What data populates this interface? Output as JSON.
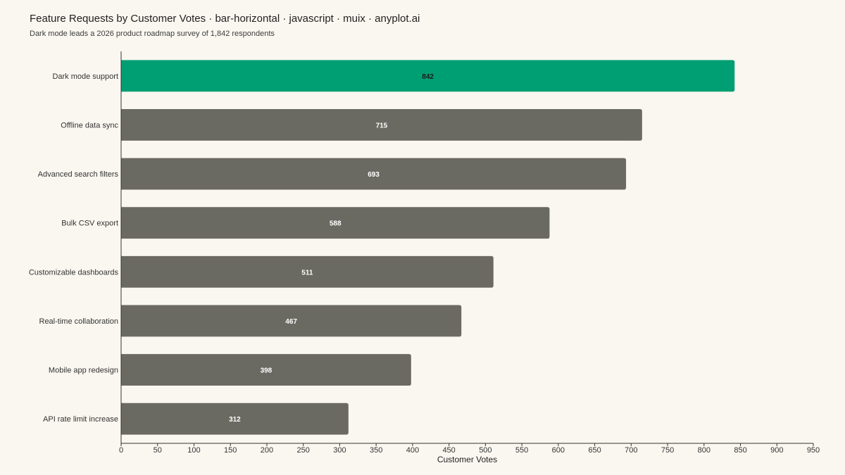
{
  "header": {
    "title": "Feature Requests by Customer Votes · bar-horizontal · javascript · muix · anyplot.ai",
    "subtitle": "Dark mode leads a 2026 product roadmap survey of 1,842 respondents"
  },
  "chart_data": {
    "type": "bar",
    "orientation": "horizontal",
    "categories": [
      "Dark mode support",
      "Offline data sync",
      "Advanced search filters",
      "Bulk CSV export",
      "Customizable dashboards",
      "Real-time collaboration",
      "Mobile app redesign",
      "API rate limit increase"
    ],
    "series": [
      {
        "values": [
          842,
          715,
          693,
          588,
          511,
          467,
          398,
          312
        ]
      }
    ],
    "xlabel": "Customer Votes",
    "ylabel": "",
    "xlim": [
      0,
      950
    ],
    "xticks": [
      0,
      50,
      100,
      150,
      200,
      250,
      300,
      350,
      400,
      450,
      500,
      550,
      600,
      650,
      700,
      750,
      800,
      850,
      900,
      950
    ],
    "grid": false,
    "data_labels": true,
    "highlight_index": 0,
    "colors": {
      "highlight": "#009E73",
      "default": "#6B6A62",
      "highlight_label": "#1a1a1a",
      "default_label": "#ffffff",
      "axis": "#333333"
    }
  }
}
